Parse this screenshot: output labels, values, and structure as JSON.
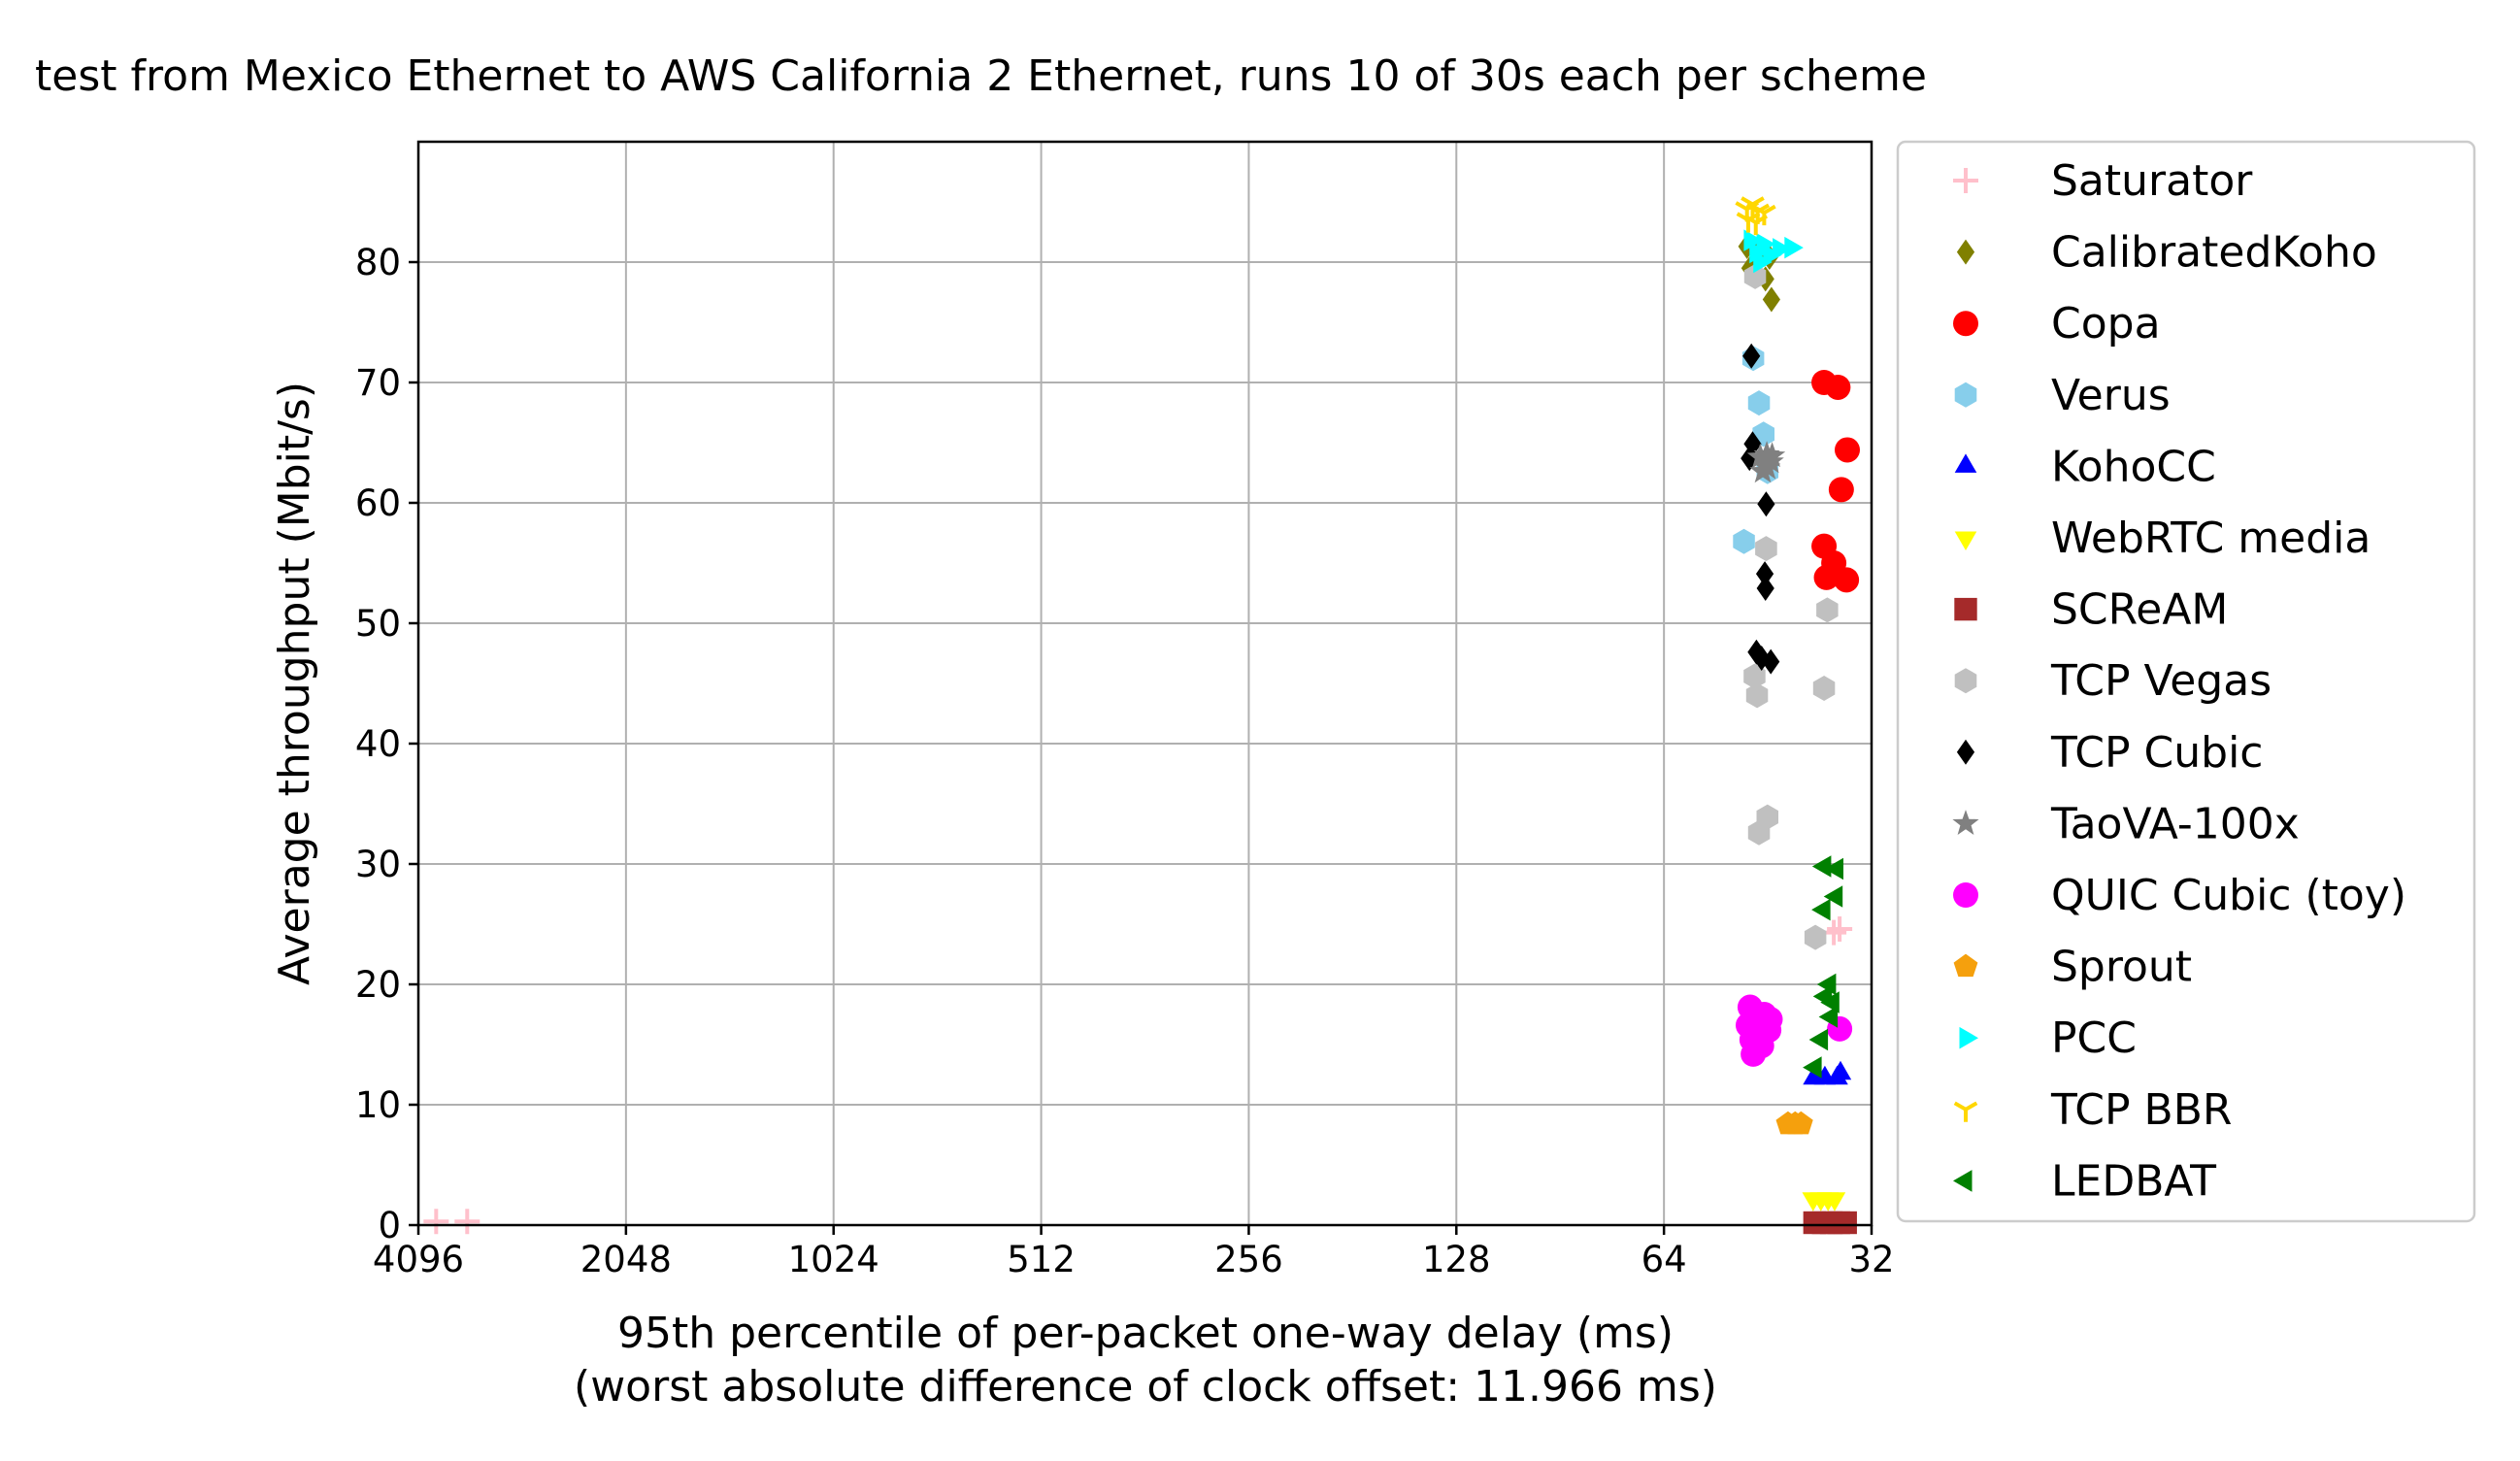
{
  "chart_data": {
    "type": "scatter",
    "title": "test from Mexico Ethernet to AWS California 2 Ethernet, runs 10 of 30s each per scheme",
    "xlabel": "95th percentile of per-packet one-way delay (ms)",
    "xlabel2": "(worst absolute difference of clock offset: 11.966 ms)",
    "ylabel": "Average throughput (Mbit/s)",
    "x_scale": "log2",
    "x_reversed": true,
    "xlim": [
      4096,
      32
    ],
    "ylim": [
      0,
      90
    ],
    "x_ticks": [
      4096,
      2048,
      1024,
      512,
      256,
      128,
      64,
      32
    ],
    "x_tick_labels": [
      "4096",
      "2048",
      "1024",
      "512",
      "256",
      "128",
      "64",
      "32"
    ],
    "y_ticks": [
      0,
      10,
      20,
      30,
      40,
      50,
      60,
      70,
      80
    ],
    "y_tick_labels": [
      "0",
      "10",
      "20",
      "30",
      "40",
      "50",
      "60",
      "70",
      "80"
    ],
    "grid": true,
    "legend_position": "outside-right",
    "series": [
      {
        "name": "Saturator",
        "marker": "plus",
        "color": "#ffc0cb",
        "points": [
          [
            3860,
            0.3
          ],
          [
            3480,
            0.3
          ],
          [
            35.6,
            24.6
          ],
          [
            36.3,
            24.3
          ]
        ]
      },
      {
        "name": "CalibratedKoho",
        "marker": "diamond",
        "color": "#808000",
        "points": [
          [
            48.5,
            81.3
          ],
          [
            47.2,
            80.0
          ],
          [
            45.6,
            78.6
          ],
          [
            44.7,
            76.9
          ],
          [
            48.0,
            79.5
          ],
          [
            45.0,
            80.4
          ],
          [
            46.5,
            81.0
          ]
        ]
      },
      {
        "name": "Copa",
        "marker": "circle",
        "color": "#ff0000",
        "points": [
          [
            37.5,
            70.0
          ],
          [
            35.8,
            69.6
          ],
          [
            34.7,
            64.4
          ],
          [
            35.4,
            61.1
          ],
          [
            37.5,
            56.4
          ],
          [
            36.3,
            55.0
          ],
          [
            37.2,
            53.8
          ],
          [
            34.8,
            53.6
          ]
        ]
      },
      {
        "name": "Verus",
        "marker": "hexagon",
        "color": "#87ceeb",
        "points": [
          [
            47.5,
            72.0
          ],
          [
            46.6,
            68.3
          ],
          [
            45.9,
            65.7
          ],
          [
            45.3,
            62.6
          ],
          [
            49.0,
            56.8
          ]
        ]
      },
      {
        "name": "KohoCC",
        "marker": "triangle-up",
        "color": "#0000ff",
        "points": [
          [
            38.8,
            12.2
          ],
          [
            37.4,
            12.2
          ],
          [
            35.9,
            12.2
          ],
          [
            35.5,
            12.6
          ]
        ]
      },
      {
        "name": "WebRTC media",
        "marker": "triangle-down",
        "color": "#ffff00",
        "points": [
          [
            38.9,
            2.2
          ],
          [
            37.9,
            2.2
          ],
          [
            37.0,
            2.2
          ],
          [
            36.2,
            2.2
          ]
        ]
      },
      {
        "name": "SCReAM",
        "marker": "square",
        "color": "#a52a2a",
        "points": [
          [
            38.7,
            0.2
          ],
          [
            37.6,
            0.2
          ],
          [
            36.6,
            0.2
          ],
          [
            35.7,
            0.2
          ],
          [
            34.9,
            0.2
          ]
        ]
      },
      {
        "name": "TCP Vegas",
        "marker": "hexagon",
        "color": "#c0c0c0",
        "points": [
          [
            47.2,
            78.8
          ],
          [
            45.5,
            56.2
          ],
          [
            37.1,
            51.1
          ],
          [
            47.3,
            45.6
          ],
          [
            46.9,
            44.0
          ],
          [
            37.5,
            44.6
          ],
          [
            45.3,
            33.9
          ],
          [
            46.6,
            32.6
          ],
          [
            38.6,
            23.9
          ]
        ]
      },
      {
        "name": "TCP Cubic",
        "marker": "diamond",
        "color": "#000000",
        "points": [
          [
            47.8,
            72.2
          ],
          [
            47.6,
            64.9
          ],
          [
            48.1,
            63.7
          ],
          [
            45.5,
            59.9
          ],
          [
            45.7,
            54.1
          ],
          [
            45.6,
            52.9
          ],
          [
            47.0,
            47.6
          ],
          [
            46.2,
            47.1
          ],
          [
            44.8,
            46.8
          ]
        ]
      },
      {
        "name": "TaoVA-100x",
        "marker": "star",
        "color": "#808080",
        "points": [
          [
            46.4,
            63.8
          ],
          [
            45.4,
            64.0
          ],
          [
            44.8,
            63.4
          ],
          [
            46.0,
            62.6
          ],
          [
            44.6,
            63.9
          ],
          [
            45.3,
            62.9
          ]
        ]
      },
      {
        "name": "QUIC Cubic (toy)",
        "marker": "circle",
        "color": "#ff00ff",
        "points": [
          [
            48.0,
            18.1
          ],
          [
            47.3,
            17.3
          ],
          [
            45.8,
            17.5
          ],
          [
            44.9,
            17.1
          ],
          [
            48.3,
            16.6
          ],
          [
            46.6,
            16.4
          ],
          [
            45.1,
            16.2
          ],
          [
            47.7,
            15.4
          ],
          [
            46.2,
            14.9
          ],
          [
            47.5,
            14.2
          ],
          [
            35.6,
            16.3
          ]
        ]
      },
      {
        "name": "Sprout",
        "marker": "pentagon",
        "color": "#f5a00d",
        "points": [
          [
            42.3,
            8.4
          ],
          [
            41.3,
            8.4
          ],
          [
            40.5,
            8.4
          ]
        ]
      },
      {
        "name": "PCC",
        "marker": "triangle-right",
        "color": "#00ffff",
        "points": [
          [
            48.0,
            81.8
          ],
          [
            47.1,
            80.8
          ],
          [
            46.0,
            81.5
          ],
          [
            45.0,
            80.6
          ],
          [
            43.6,
            81.1
          ],
          [
            41.9,
            81.2
          ],
          [
            46.5,
            80.0
          ]
        ]
      },
      {
        "name": "TCP BBR",
        "marker": "tri-down",
        "color": "#ffd700",
        "points": [
          [
            48.5,
            84.4
          ],
          [
            47.6,
            84.8
          ],
          [
            46.8,
            84.2
          ],
          [
            45.8,
            84.1
          ],
          [
            47.1,
            83.3
          ],
          [
            48.3,
            83.5
          ]
        ]
      },
      {
        "name": "LEDBAT",
        "marker": "triangle-left",
        "color": "#008000",
        "points": [
          [
            37.4,
            29.8
          ],
          [
            35.9,
            29.6
          ],
          [
            36.0,
            27.3
          ],
          [
            37.5,
            26.2
          ],
          [
            36.8,
            20.0
          ],
          [
            37.3,
            19.0
          ],
          [
            36.4,
            18.5
          ],
          [
            36.6,
            17.3
          ],
          [
            37.8,
            15.4
          ],
          [
            38.6,
            13.1
          ]
        ]
      }
    ]
  }
}
